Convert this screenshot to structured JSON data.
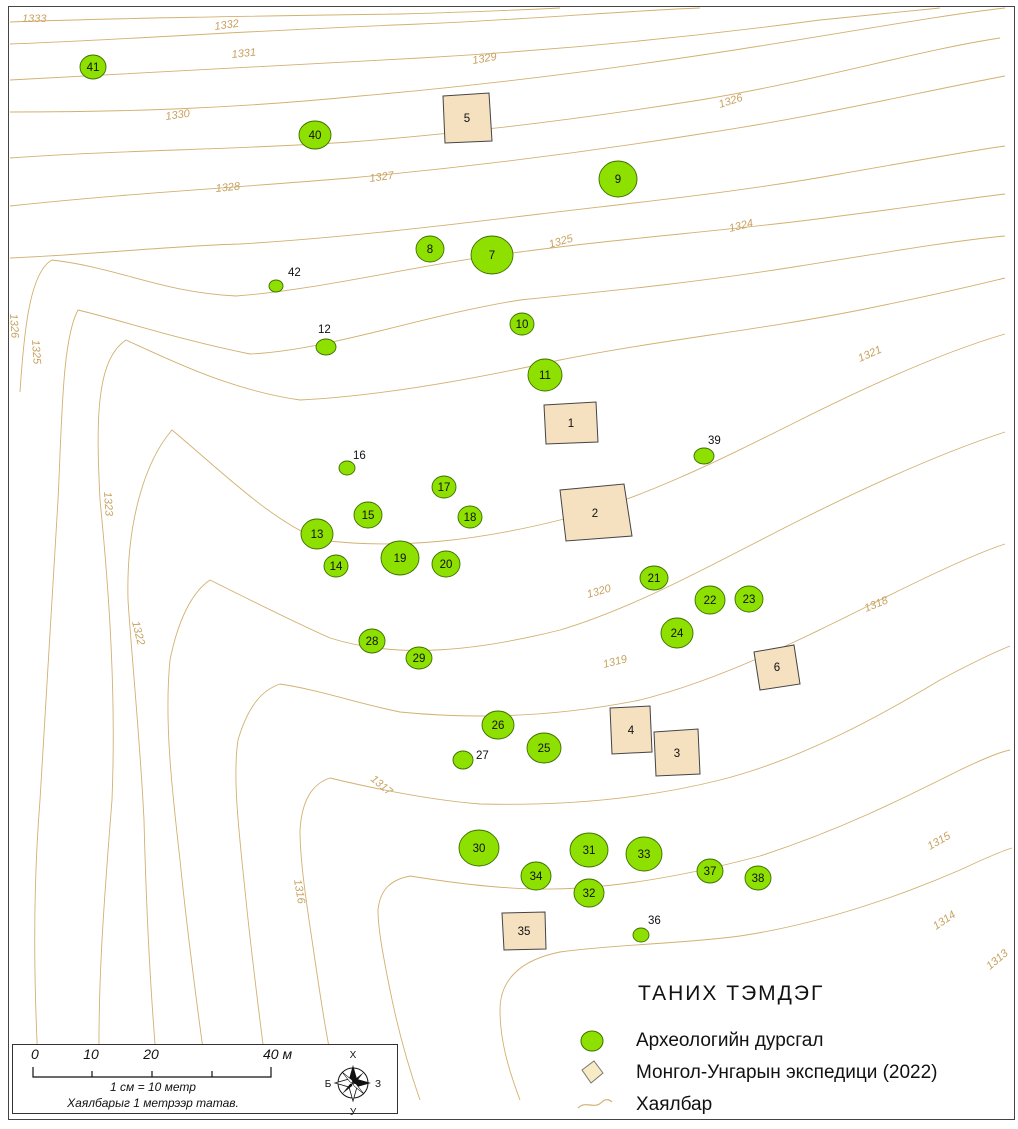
{
  "contours": {
    "color": "#d2b070",
    "labels": [
      "1333",
      "1332",
      "1331",
      "1329",
      "1330",
      "1326",
      "1328",
      "1327",
      "1325",
      "1324",
      "1321",
      "1320",
      "1319",
      "1318",
      "1317",
      "1316",
      "1315",
      "1314",
      "1313",
      "1325",
      "1323",
      "1322",
      "1326"
    ]
  },
  "sites": {
    "monument_color": "#8ee000",
    "monument_stroke": "#3d6e00",
    "excavation_color": "#f5e0c0",
    "excavation_stroke": "#444444",
    "monuments": [
      "41",
      "40",
      "9",
      "8",
      "7",
      "42",
      "12",
      "10",
      "11",
      "16",
      "39",
      "17",
      "15",
      "18",
      "13",
      "19",
      "14",
      "20",
      "21",
      "22",
      "23",
      "24",
      "28",
      "29",
      "26",
      "25",
      "27",
      "30",
      "31",
      "33",
      "34",
      "37",
      "38",
      "32",
      "36"
    ],
    "excavations": [
      "5",
      "1",
      "2",
      "6",
      "4",
      "3",
      "35"
    ]
  },
  "legend": {
    "title": "ТАНИХ ТЭМДЭГ",
    "items": {
      "monument": "Археологийн дурсгал",
      "excavation": "Монгол-Унгарын экспедици (2022)",
      "contour": "Хаялбар"
    }
  },
  "scale": {
    "ticks": [
      "0",
      "10",
      "20",
      "40 м"
    ],
    "ratio": "1 см = 10 метр",
    "note": "Хаялбарыг 1 метрээр татав."
  },
  "compass": {
    "north": "Х",
    "south": "У",
    "west": "Б",
    "east": "З"
  }
}
